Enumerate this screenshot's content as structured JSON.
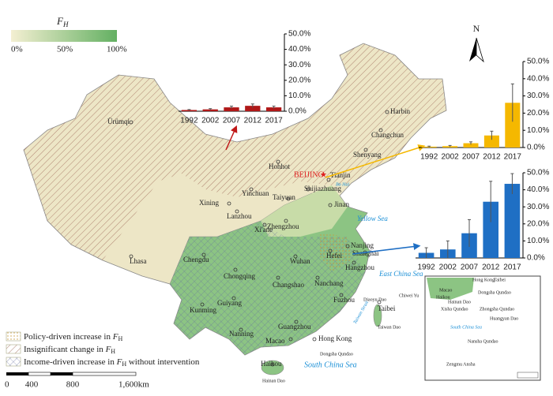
{
  "legend": {
    "symbol": "F",
    "sub": "H",
    "min_label": "0%",
    "mid_label": "50%",
    "max_label": "100%",
    "items": [
      {
        "text": "Policy-driven increase in ",
        "symbol": "F",
        "sub": "H",
        "suffix": ""
      },
      {
        "text": "Insignificant change in ",
        "symbol": "F",
        "sub": "H",
        "suffix": ""
      },
      {
        "text": "Income-driven increase in ",
        "symbol": "F",
        "sub": "H",
        "suffix": " without intervention"
      }
    ]
  },
  "north": "N",
  "scale": [
    "0",
    "400",
    "800",
    "1,600km"
  ],
  "map": {
    "capital": "BEIJING",
    "cities": [
      "Ürümqi",
      "Harbin",
      "Changchun",
      "Shenyang",
      "Hohhot",
      "Tianjin",
      "Shijiazhuang",
      "Taiyuan",
      "Jinan",
      "Xining",
      "Yinchuan",
      "Lanzhou",
      "Xi'ane",
      "Zhengzhou",
      "Nanjing",
      "Hefei",
      "Shanghai",
      "Hangzhou",
      "Wuhan",
      "Lhasa",
      "Chengdu",
      "Chongqing",
      "Changshao",
      "Nanchang",
      "Fuzhou",
      "Guiyang",
      "Kunming",
      "Nanning",
      "Guangzhou",
      "Macao",
      "Hong Kong",
      "Taibei",
      "Haikou"
    ],
    "seas": [
      "Bo Hai",
      "Yellow Sea",
      "East China Sea",
      "South China Sea",
      "Taiwan Strait"
    ],
    "islands": [
      "Diaoyu Dao",
      "Chiwei Yu",
      "Taiwan Dao",
      "Dongsha Qundao",
      "Hainan Dao"
    ],
    "inset": [
      "Hong Kong",
      "Taibei",
      "Macao",
      "Haikou",
      "Hainan Dao",
      "Dongsha Qundao",
      "Xisha Qundao",
      "Zhongsha Qundao",
      "Huangyan Dao",
      "South China Sea",
      "Nansha Qundao",
      "Zengmu Ansha"
    ]
  },
  "chart_data": [
    {
      "type": "bar",
      "categories": [
        "1992",
        "2002",
        "2007",
        "2012",
        "2017"
      ],
      "values": [
        0.8,
        1.2,
        2.5,
        3.5,
        2.5
      ],
      "errors": [
        0.3,
        0.5,
        0.8,
        1.2,
        0.8
      ],
      "color": "#b01818",
      "ylim": [
        0,
        50
      ],
      "yticks": [
        {
          "value": 0,
          "label": "0.0%"
        },
        {
          "value": 10,
          "label": "10.0%"
        },
        {
          "value": 20,
          "label": "20.0%"
        },
        {
          "value": 30,
          "label": "30.0%"
        },
        {
          "value": 40,
          "label": "40.0%"
        },
        {
          "value": 50,
          "label": "50.0%"
        }
      ]
    },
    {
      "type": "bar",
      "categories": [
        "1992",
        "2002",
        "2007",
        "2012",
        "2017"
      ],
      "values": [
        0.5,
        0.8,
        2.5,
        7,
        26
      ],
      "errors": [
        0.3,
        0.4,
        0.8,
        2.5,
        11
      ],
      "color": "#f5b800",
      "ylim": [
        0,
        50
      ],
      "yticks": [
        {
          "value": 0,
          "label": "0.0%"
        },
        {
          "value": 10,
          "label": "10.0%"
        },
        {
          "value": 20,
          "label": "20.0%"
        },
        {
          "value": 30,
          "label": "30.0%"
        },
        {
          "value": 40,
          "label": "40.0%"
        },
        {
          "value": 50,
          "label": "50.0%"
        }
      ]
    },
    {
      "type": "bar",
      "categories": [
        "1992",
        "2002",
        "2007",
        "2012",
        "2017"
      ],
      "values": [
        3,
        5,
        14.5,
        33,
        43.5
      ],
      "errors": [
        3,
        5,
        8,
        12,
        6
      ],
      "color": "#1f6fc4",
      "ylim": [
        0,
        50
      ],
      "yticks": [
        {
          "value": 0,
          "label": "0.0%"
        },
        {
          "value": 10,
          "label": "10.0%"
        },
        {
          "value": 20,
          "label": "20.0%"
        },
        {
          "value": 30,
          "label": "30.0%"
        },
        {
          "value": 40,
          "label": "40.0%"
        },
        {
          "value": 50,
          "label": "50.0%"
        }
      ]
    }
  ]
}
